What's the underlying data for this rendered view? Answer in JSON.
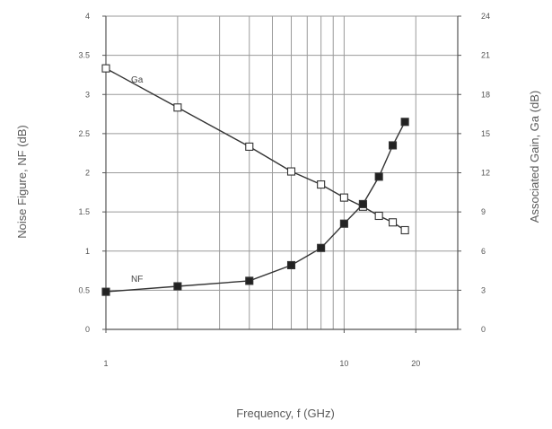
{
  "chart_data": {
    "type": "line",
    "title": "",
    "xlabel": "Frequency, f (GHz)",
    "ylabel_left": "Noise Figure, NF (dB)",
    "ylabel_right": "Associated Gain, Ga (dB)",
    "x_scale": "log",
    "xlim": [
      1,
      30
    ],
    "ylim_left": [
      0,
      4
    ],
    "ylim_right": [
      0,
      24
    ],
    "x_ticks": [
      1,
      10,
      20
    ],
    "x_tick_labels": [
      "1",
      "10",
      "20"
    ],
    "y_left_ticks": [
      0,
      0.5,
      1,
      1.5,
      2,
      2.5,
      3,
      3.5,
      4
    ],
    "y_left_tick_labels": [
      "0",
      "0.5",
      "1",
      "1.5",
      "2",
      "2.5",
      "3",
      "3.5",
      "4"
    ],
    "y_right_ticks": [
      0,
      3,
      6,
      9,
      12,
      15,
      18,
      21,
      24
    ],
    "y_right_tick_labels": [
      "0",
      "3",
      "6",
      "9",
      "12",
      "15",
      "18",
      "21",
      "24"
    ],
    "grid": true,
    "series": [
      {
        "name": "Ga",
        "axis": "right",
        "marker": "open-square",
        "color": "#333333",
        "x": [
          1,
          2,
          4,
          6,
          8,
          10,
          12,
          14,
          16,
          18
        ],
        "y": [
          20.0,
          17.0,
          14.0,
          12.1,
          11.1,
          10.1,
          9.4,
          8.7,
          8.2,
          7.6
        ]
      },
      {
        "name": "NF",
        "axis": "left",
        "marker": "filled-square",
        "color": "#333333",
        "x": [
          1,
          2,
          4,
          6,
          8,
          10,
          12,
          14,
          16,
          18
        ],
        "y": [
          0.48,
          0.55,
          0.62,
          0.82,
          1.04,
          1.35,
          1.6,
          1.95,
          2.35,
          2.65
        ]
      }
    ]
  }
}
